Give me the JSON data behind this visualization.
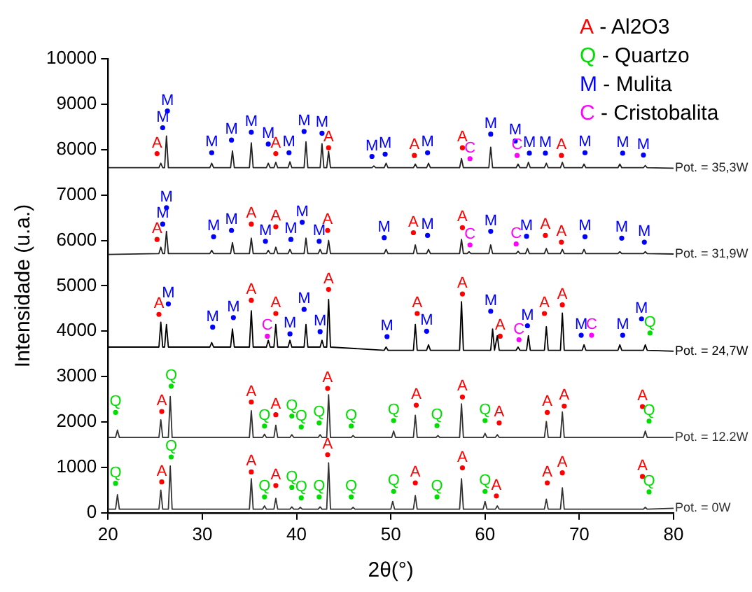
{
  "chart_data": {
    "type": "line",
    "xlabel": "2θ(°)",
    "ylabel": "Intensidade (u.a.)",
    "xlim": [
      20,
      80
    ],
    "xticks": [
      20,
      30,
      40,
      50,
      60,
      70,
      80
    ],
    "ylim": [
      0,
      10000
    ],
    "yticks": [
      0,
      1000,
      2000,
      3000,
      4000,
      5000,
      6000,
      7000,
      8000,
      9000,
      10000
    ],
    "grid": false,
    "legend": "top right",
    "series": [
      {
        "name": "Pot. = 35,3W",
        "color": "#222222",
        "x": [
          20,
          25.4,
          25.6,
          25.8,
          26.0,
          26.2,
          26.4,
          30.8,
          31,
          31.2,
          33.0,
          33.2,
          33.4,
          35.0,
          35.2,
          35.4,
          36.8,
          37,
          37.2,
          37.6,
          37.8,
          38.0,
          39.1,
          39.3,
          39.5,
          40.8,
          41,
          41.2,
          42.5,
          42.7,
          42.9,
          43.2,
          43.4,
          43.6,
          48.0,
          48.2,
          48.4,
          49.3,
          49.5,
          49.7,
          52.4,
          52.6,
          52.8,
          53.8,
          54,
          54.2,
          57.3,
          57.5,
          57.7,
          60.4,
          60.6,
          60.8,
          63.3,
          63.5,
          63.7,
          64.4,
          64.6,
          64.8,
          66.3,
          66.5,
          66.7,
          68.0,
          68.2,
          68.4,
          70.3,
          70.5,
          70.7,
          74.1,
          74.3,
          74.5,
          76.8,
          77,
          77.2,
          80
        ],
        "values": [
          7600,
          7600,
          7700,
          7600,
          7600,
          8300,
          7600,
          7600,
          7700,
          7600,
          7600,
          7970,
          7600,
          7600,
          8150,
          7600,
          7600,
          7700,
          7600,
          7600,
          7720,
          7600,
          7600,
          7730,
          7600,
          7600,
          8170,
          7600,
          7600,
          8130,
          7600,
          7600,
          7960,
          7600,
          7600,
          7640,
          7600,
          7600,
          7700,
          7600,
          7600,
          7680,
          7600,
          7600,
          7700,
          7600,
          7600,
          7800,
          7600,
          7600,
          8050,
          7600,
          7600,
          7680,
          7600,
          7600,
          7720,
          7600,
          7600,
          7700,
          7600,
          7600,
          7720,
          7600,
          7600,
          7680,
          7600,
          7600,
          7680,
          7600,
          7600,
          7650,
          7600,
          7590
        ]
      },
      {
        "name": "Pot. = 31,9W",
        "color": "#222222",
        "x": [
          20,
          25.4,
          25.6,
          25.8,
          26.0,
          26.2,
          26.4,
          30.8,
          31,
          31.2,
          33.0,
          33.2,
          33.4,
          35.0,
          35.2,
          35.4,
          36.8,
          37,
          37.2,
          37.6,
          37.8,
          38.0,
          39.1,
          39.3,
          39.5,
          40.8,
          41,
          41.2,
          42.3,
          42.5,
          42.7,
          43.2,
          43.4,
          43.6,
          49.3,
          49.5,
          49.7,
          52.4,
          52.6,
          52.8,
          53.8,
          54,
          54.2,
          57.3,
          57.5,
          57.7,
          58.1,
          58.3,
          58.5,
          60.4,
          60.6,
          60.8,
          63.3,
          63.5,
          63.7,
          64.3,
          64.5,
          64.7,
          66.3,
          66.5,
          66.7,
          68.0,
          68.2,
          68.4,
          70.3,
          70.5,
          70.7,
          74.1,
          74.3,
          74.5,
          76.8,
          77,
          77.2,
          80
        ],
        "values": [
          5690,
          5710,
          5850,
          5710,
          5710,
          6200,
          5710,
          5710,
          5780,
          5710,
          5710,
          5950,
          5710,
          5710,
          6050,
          5710,
          5710,
          5780,
          5710,
          5710,
          5850,
          5710,
          5710,
          5800,
          5710,
          5710,
          6050,
          5710,
          5710,
          5800,
          5710,
          5710,
          6000,
          5710,
          5710,
          5800,
          5710,
          5710,
          5900,
          5710,
          5710,
          5800,
          5710,
          5710,
          6020,
          5710,
          5710,
          5750,
          5710,
          5710,
          5900,
          5710,
          5710,
          5760,
          5710,
          5710,
          5820,
          5710,
          5710,
          5820,
          5710,
          5710,
          5800,
          5710,
          5710,
          5800,
          5710,
          5710,
          5750,
          5710,
          5710,
          5750,
          5710,
          5700
        ]
      },
      {
        "name": "Pot. = 24,7W",
        "color": "#000000",
        "x": [
          20,
          25.4,
          25.6,
          25.8,
          26.0,
          26.2,
          26.4,
          30.8,
          31,
          31.2,
          33.0,
          33.2,
          33.4,
          35.0,
          35.2,
          35.4,
          36.8,
          37,
          37.2,
          37.6,
          37.8,
          38.0,
          39.1,
          39.3,
          39.5,
          40.8,
          41,
          41.2,
          42.5,
          42.7,
          42.9,
          43.2,
          43.4,
          43.6,
          49.3,
          49.5,
          49.7,
          52.4,
          52.6,
          52.8,
          53.8,
          54,
          54.2,
          57.3,
          57.5,
          57.7,
          60.6,
          60.8,
          61.0,
          61.1,
          61.3,
          61.5,
          63.3,
          63.5,
          63.7,
          64.4,
          64.6,
          64.8,
          66.3,
          66.5,
          66.7,
          68.0,
          68.2,
          68.4,
          70.3,
          70.5,
          70.7,
          74.1,
          74.3,
          74.5,
          76.8,
          77,
          77.2,
          80
        ],
        "values": [
          3650,
          3650,
          4200,
          3650,
          3650,
          4150,
          3650,
          3650,
          3750,
          3650,
          3650,
          4050,
          3650,
          3650,
          4450,
          3650,
          3650,
          3800,
          3650,
          3650,
          4150,
          3650,
          3650,
          3800,
          3650,
          3650,
          4150,
          3650,
          3650,
          3800,
          3650,
          3650,
          4700,
          3650,
          3580,
          3650,
          3580,
          3580,
          4150,
          3580,
          3580,
          3700,
          3580,
          3580,
          4650,
          3580,
          3580,
          4050,
          3580,
          3580,
          3900,
          3580,
          3580,
          3650,
          3580,
          3580,
          3900,
          3580,
          3580,
          4100,
          3580,
          3580,
          4400,
          3580,
          3580,
          3700,
          3580,
          3580,
          3700,
          3580,
          3580,
          3700,
          3580,
          3560
        ]
      },
      {
        "name": "Pot. = 12.2W",
        "color": "#333333",
        "x": [
          20,
          20.8,
          21,
          21.2,
          25.4,
          25.6,
          25.8,
          26.4,
          26.6,
          26.8,
          35,
          35.2,
          35.4,
          36.4,
          36.6,
          36.8,
          37.6,
          37.8,
          38,
          39.3,
          39.5,
          39.7,
          42.3,
          42.5,
          42.7,
          43.2,
          43.4,
          43.6,
          45.8,
          46,
          46.2,
          50.1,
          50.3,
          50.5,
          52.4,
          52.6,
          52.8,
          54.8,
          55,
          55.2,
          57.3,
          57.5,
          57.7,
          59.8,
          60,
          60.2,
          61.1,
          61.3,
          61.5,
          66.3,
          66.5,
          66.7,
          68,
          68.2,
          68.4,
          76.8,
          77,
          77.2,
          80
        ],
        "values": [
          1660,
          1660,
          1820,
          1660,
          1660,
          2050,
          1660,
          1660,
          2560,
          1660,
          1660,
          2250,
          1660,
          1660,
          1730,
          1660,
          1660,
          1930,
          1660,
          1660,
          1720,
          1660,
          1660,
          1720,
          1660,
          1660,
          2600,
          1660,
          1660,
          1700,
          1660,
          1660,
          1800,
          1660,
          1660,
          2150,
          1660,
          1660,
          1700,
          1660,
          1660,
          2400,
          1660,
          1660,
          1750,
          1660,
          1660,
          1720,
          1660,
          1660,
          2010,
          1660,
          1660,
          2220,
          1660,
          1660,
          1800,
          1660,
          1660
        ]
      },
      {
        "name": "Pot. = 0W",
        "color": "#333333",
        "x": [
          20,
          20.8,
          21,
          21.2,
          25.4,
          25.6,
          25.8,
          26.4,
          26.6,
          26.8,
          35,
          35.2,
          35.4,
          36.4,
          36.6,
          36.8,
          37.6,
          37.8,
          38,
          39.3,
          39.5,
          39.7,
          40.2,
          40.4,
          40.6,
          42.3,
          42.5,
          42.7,
          43.2,
          43.4,
          43.6,
          45.8,
          46,
          46.2,
          50,
          50.2,
          50.4,
          52.4,
          52.6,
          52.8,
          57.3,
          57.5,
          57.7,
          59.8,
          60,
          60.2,
          61.1,
          61.3,
          61.5,
          66.3,
          66.5,
          66.7,
          68,
          68.2,
          68.4,
          76.8,
          77,
          77.2,
          80
        ],
        "values": [
          80,
          80,
          400,
          80,
          80,
          500,
          80,
          80,
          1030,
          80,
          80,
          750,
          80,
          80,
          150,
          80,
          80,
          320,
          80,
          80,
          130,
          80,
          80,
          120,
          80,
          80,
          130,
          80,
          80,
          1100,
          80,
          80,
          120,
          80,
          80,
          250,
          80,
          80,
          380,
          80,
          80,
          750,
          80,
          80,
          250,
          80,
          80,
          150,
          80,
          80,
          300,
          80,
          80,
          550,
          80,
          80,
          120,
          80,
          100
        ]
      },
      {
        "type": "scatter",
        "name": "A - Al2O3",
        "color": "#ff0000",
        "x": [
          25.2,
          37.8,
          43.4,
          52.5,
          57.6,
          68.1,
          25.2,
          35.2,
          37.8,
          43.3,
          52.4,
          57.6,
          66.4,
          68.1,
          25.4,
          35.2,
          37.8,
          43.4,
          52.8,
          57.6,
          61.6,
          66.3,
          68.2,
          25.7,
          35.2,
          37.8,
          43.3,
          52.7,
          57.6,
          61.5,
          66.6,
          68.4,
          76.7,
          25.7,
          35.2,
          37.8,
          43.3,
          52.6,
          57.6,
          61.2,
          66.6,
          68.2,
          76.7
        ],
        "values": [
          7910,
          7910,
          8040,
          7870,
          8040,
          7870,
          6020,
          6360,
          6300,
          6220,
          6170,
          6280,
          6110,
          5960,
          4370,
          4680,
          4390,
          4920,
          4390,
          4820,
          3890,
          4390,
          4580,
          2230,
          2440,
          2160,
          2740,
          2370,
          2550,
          1980,
          2210,
          2350,
          2340,
          680,
          900,
          600,
          1280,
          660,
          990,
          370,
          660,
          880,
          800
        ],
        "value_labels": [
          "A",
          "A",
          "A",
          "A",
          "A",
          "A",
          "A",
          "A",
          "A",
          "A",
          "A",
          "A",
          "A",
          "A",
          "A",
          "A",
          "A",
          "A",
          "A",
          "A",
          "A",
          "A",
          "A",
          "A",
          "A",
          "A",
          "A",
          "A",
          "A",
          "A",
          "A",
          "A",
          "A",
          "A",
          "A",
          "A",
          "A",
          "A",
          "A",
          "A",
          "A",
          "A",
          "A"
        ]
      },
      {
        "type": "scatter",
        "name": "Q - Quartzo",
        "color": "#00dd00",
        "x": [
          77.5,
          20.8,
          26.7,
          36.6,
          39.5,
          40.5,
          42.4,
          45.8,
          50.3,
          54.9,
          60.0,
          77.4,
          20.8,
          26.7,
          36.6,
          39.5,
          40.5,
          42.4,
          45.8,
          50.3,
          54.9,
          60.0,
          77.4
        ],
        "values": [
          3960,
          2210,
          2790,
          1910,
          2130,
          1890,
          1980,
          1910,
          2030,
          1920,
          2030,
          2020,
          650,
          1230,
          350,
          560,
          330,
          350,
          350,
          470,
          350,
          470,
          460
        ],
        "value_labels": [
          "Q",
          "Q",
          "Q",
          "Q",
          "Q",
          "Q",
          "Q",
          "Q",
          "Q",
          "Q",
          "Q",
          "Q",
          "Q",
          "Q",
          "Q",
          "Q",
          "Q",
          "Q",
          "Q",
          "Q",
          "Q",
          "Q",
          "Q"
        ]
      },
      {
        "type": "scatter",
        "name": "M - Mulita",
        "color": "#0000ff",
        "x": [
          25.8,
          26.3,
          31.0,
          33.1,
          35.2,
          37.0,
          39.2,
          40.8,
          42.7,
          48.0,
          49.4,
          53.9,
          60.6,
          63.2,
          64.7,
          66.4,
          70.6,
          74.6,
          76.8,
          25.8,
          26.2,
          31.2,
          33.1,
          36.7,
          39.4,
          40.6,
          42.4,
          49.3,
          53.9,
          60.6,
          64.4,
          70.6,
          74.5,
          76.9,
          26.4,
          31.1,
          33.3,
          39.3,
          40.8,
          42.5,
          49.6,
          53.8,
          60.6,
          64.5,
          70.2,
          74.6,
          76.6
        ],
        "values": [
          8480,
          8850,
          7930,
          8210,
          8380,
          8120,
          7930,
          8400,
          8360,
          7850,
          7900,
          7930,
          8340,
          8190,
          7920,
          7920,
          7930,
          7920,
          7880,
          6360,
          6720,
          6080,
          6220,
          5980,
          6020,
          6400,
          5980,
          6060,
          6110,
          6200,
          6090,
          6080,
          6050,
          5960,
          4600,
          4090,
          4300,
          3940,
          4480,
          3990,
          3880,
          4000,
          4440,
          4120,
          3910,
          3910,
          4270
        ],
        "value_labels": [
          "M",
          "M",
          "M",
          "M",
          "M",
          "M",
          "M",
          "M",
          "M",
          "M",
          "M",
          "M",
          "M",
          "M",
          "M",
          "M",
          "M",
          "M",
          "M",
          "M",
          "M",
          "M",
          "M",
          "M",
          "M",
          "M",
          "M",
          "M",
          "M",
          "M",
          "M",
          "M",
          "M",
          "M",
          "M",
          "M",
          "M",
          "M",
          "M",
          "M",
          "M",
          "M",
          "M",
          "M",
          "M",
          "M",
          "M"
        ]
      },
      {
        "type": "scatter",
        "name": "C - Cristobalita",
        "color": "#ff00ff",
        "x": [
          58.4,
          63.4,
          58.4,
          63.3,
          36.9,
          63.6,
          71.3
        ],
        "values": [
          7800,
          7870,
          5900,
          5920,
          3890,
          3810,
          3910
        ],
        "value_labels": [
          "C",
          "C",
          "C",
          "C",
          "C",
          "C",
          "C"
        ]
      }
    ]
  }
}
